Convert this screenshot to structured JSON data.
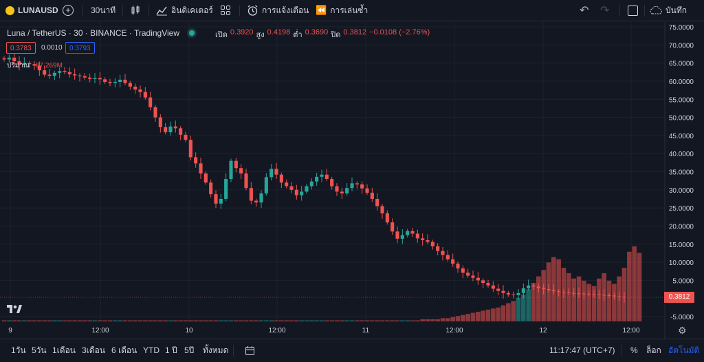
{
  "topbar": {
    "symbol": "LUNAUSD",
    "interval": "30นาที",
    "indicators": "อินดิเคเตอร์",
    "alert": "การแจ้งเตือน",
    "replay": "การเล่นซ้ำ",
    "save": "บันทึก"
  },
  "legend": {
    "title": "Luna / TetherUS · 30 · BINANCE · TradingView",
    "open_label": "เปิด",
    "open": "0.3920",
    "high_label": "สูง",
    "high": "0.4198",
    "low_label": "ต่ำ",
    "low": "0.3690",
    "close_label": "ปิด",
    "close": "0.3812",
    "change": "−0.0108 (−2.76%)",
    "bid": "0.3783",
    "spread": "0.0010",
    "ask": "0.3793",
    "volume_label": "ปริมาณ",
    "volume_value": "87.269M"
  },
  "price_badge": "0.3812",
  "time_axis": [
    "9",
    "12:00",
    "10",
    "12:00",
    "11",
    "12:00",
    "12",
    "12:00"
  ],
  "bottombar": {
    "ranges": [
      "1วัน",
      "5วัน",
      "1เดือน",
      "3เดือน",
      "6 เดือน",
      "YTD",
      "1 ปี",
      "5ปี",
      "ทั้งหมด"
    ],
    "clock": "11:17:47 (UTC+7)",
    "percent": "%",
    "log": "ล็อก",
    "auto": "อัตโนมัติ"
  },
  "colors": {
    "up": "#26a69a",
    "down": "#ef5350",
    "accent": "#2962ff",
    "background": "#131722"
  },
  "chart_data": {
    "type": "candlestick",
    "title": "Luna / TetherUS · 30 · BINANCE",
    "y_ticks": [
      "75.0000",
      "70.0000",
      "65.0000",
      "60.0000",
      "55.0000",
      "50.0000",
      "45.0000",
      "40.0000",
      "35.0000",
      "30.0000",
      "25.0000",
      "20.0000",
      "15.0000",
      "10.0000",
      "5.0000",
      "-5.0000"
    ],
    "ylim": [
      -6,
      76
    ],
    "close_series": [
      66,
      66.5,
      65.5,
      64.5,
      65,
      64.7,
      64.3,
      63,
      61.8,
      61.5,
      62.3,
      62.8,
      62.5,
      61.9,
      61.6,
      61.4,
      61,
      60.6,
      60.9,
      60.5,
      59.8,
      59.5,
      59.8,
      60.4,
      59.5,
      58.5,
      57.7,
      57,
      55.5,
      52.8,
      50,
      47.3,
      45.9,
      47.5,
      47,
      45.2,
      43.8,
      39,
      37.3,
      34.5,
      32,
      28.8,
      26.2,
      27.5,
      33,
      38,
      36,
      34.5,
      30.5,
      27,
      26.5,
      29,
      33.5,
      35.8,
      34.2,
      32,
      31,
      30,
      28.5,
      29.5,
      31,
      32.3,
      33.6,
      34.2,
      33,
      31,
      29.5,
      29,
      30.5,
      31.8,
      31.5,
      30.4,
      29.2,
      27.5,
      25.5,
      23.5,
      21,
      18.5,
      16.5,
      17.5,
      18.6,
      17.9,
      16.6,
      16.1,
      15.6,
      14.4,
      13.1,
      12,
      10.8,
      9.6,
      8.3,
      7.1,
      6.3,
      5.7,
      5,
      4.3,
      3.6,
      2.7,
      2.1,
      1.5,
      1.1,
      0.9,
      1.5,
      2.8,
      3.6,
      3.3,
      2.9,
      2.6,
      2.3,
      2,
      1.8,
      1.7,
      1.5,
      1.4,
      1.35,
      1.3,
      1.2,
      1.1,
      1.0,
      0.9,
      0.8,
      0.6,
      0.45,
      0.3812
    ],
    "volume_series": [
      1,
      1,
      1,
      1,
      1,
      1,
      1,
      1,
      1,
      1,
      1,
      1,
      1,
      1,
      1,
      1,
      1,
      1,
      1,
      1,
      1,
      1,
      1,
      1,
      1,
      1,
      1,
      1,
      1,
      1,
      1,
      1,
      1,
      1,
      1,
      1,
      1,
      1,
      1,
      1,
      1,
      1,
      1,
      1,
      1,
      1,
      1,
      1,
      1,
      1,
      1,
      1,
      1,
      1,
      1,
      1,
      1,
      1,
      1,
      1,
      1,
      1,
      1,
      1,
      1,
      1,
      1,
      1,
      1,
      1,
      1,
      1,
      1,
      1,
      1,
      1,
      1,
      1,
      1,
      1,
      1,
      1,
      1,
      2,
      2,
      2,
      2,
      3,
      3,
      4,
      5,
      6,
      7,
      8,
      9,
      10,
      11,
      12,
      13,
      15,
      17,
      19,
      22,
      25,
      30,
      36,
      42,
      48,
      55,
      60,
      58,
      50,
      45,
      40,
      42,
      38,
      35,
      33,
      40,
      45,
      38,
      35,
      42,
      50,
      65,
      70,
      64
    ]
  }
}
